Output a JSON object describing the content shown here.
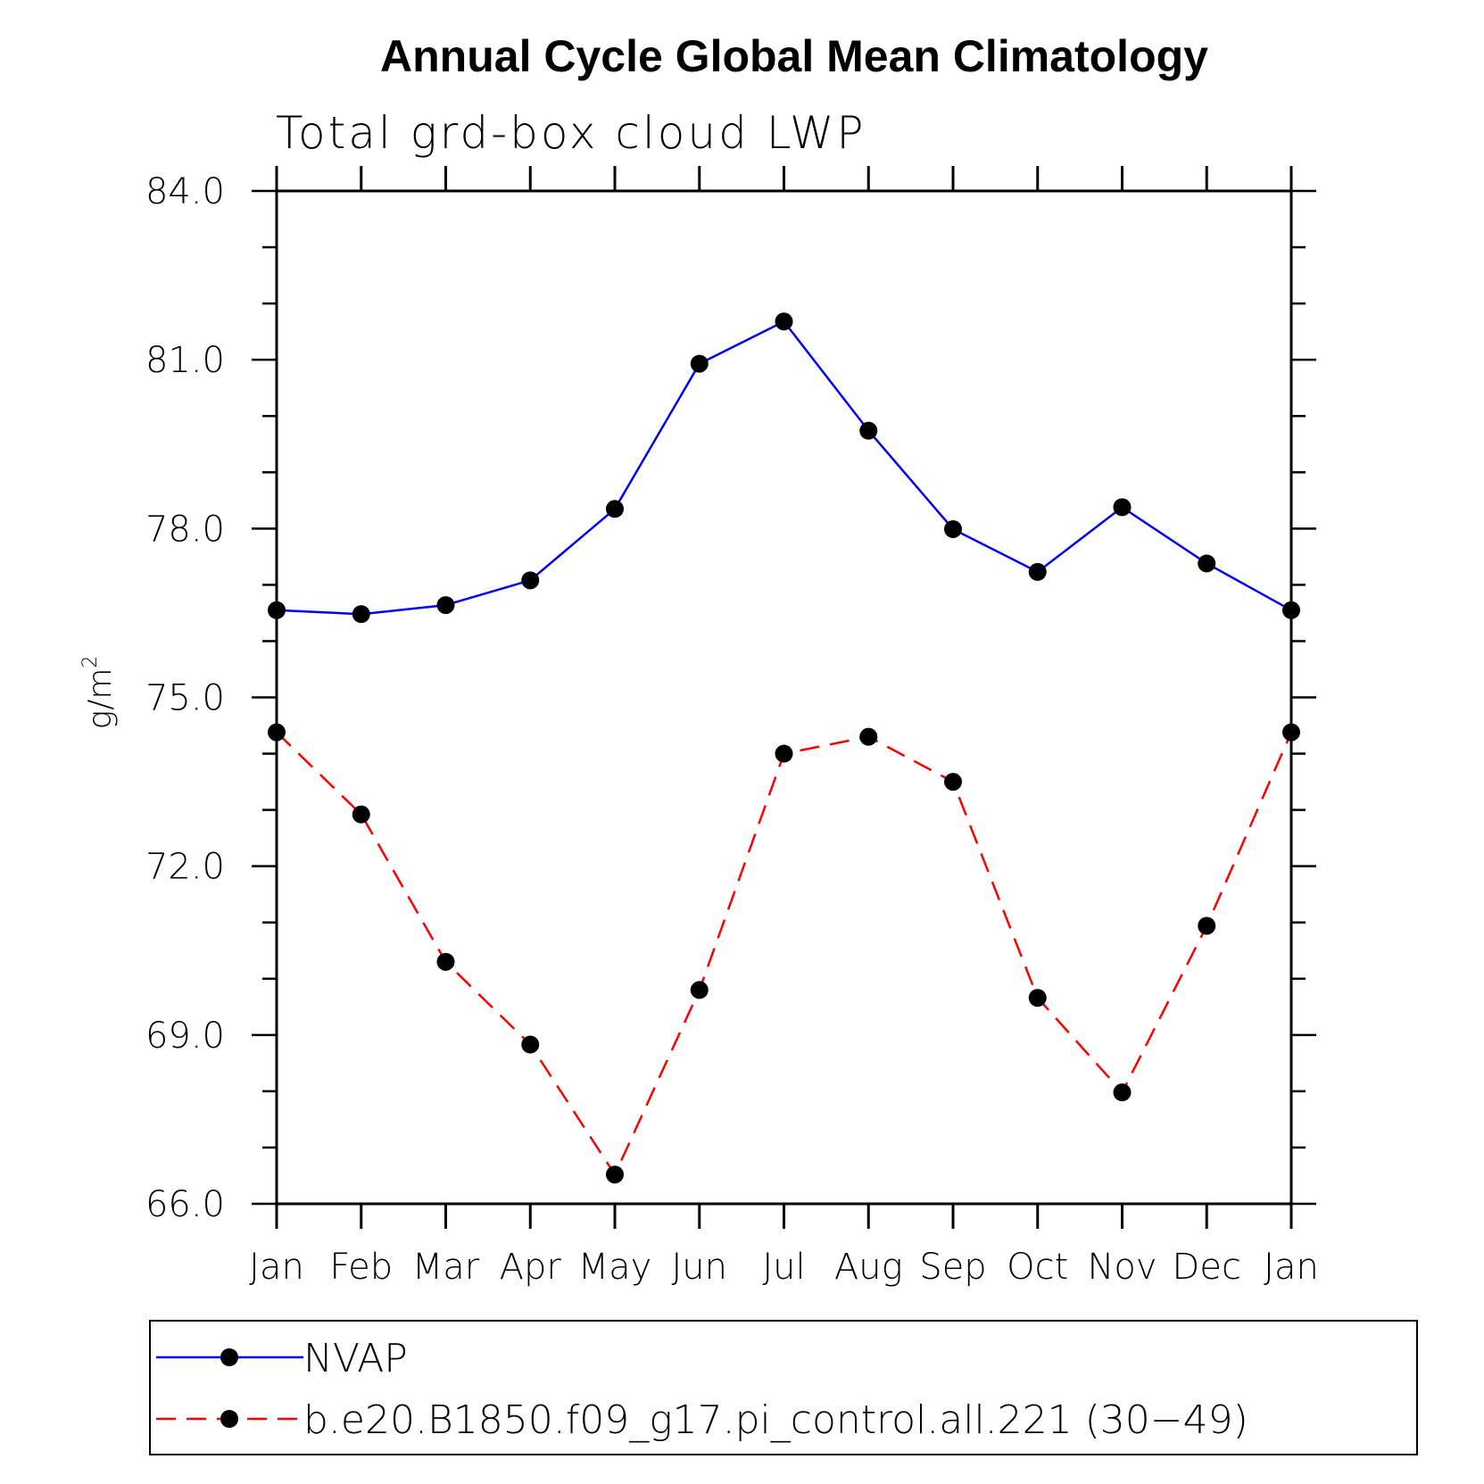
{
  "chart_data": {
    "type": "line",
    "title": "Annual Cycle Global Mean Climatology",
    "subtitle": "Total grd-box cloud LWP",
    "xlabel": "",
    "ylabel_base": "g/m",
    "ylabel_sup": "2",
    "categories": [
      "Jan",
      "Feb",
      "Mar",
      "Apr",
      "May",
      "Jun",
      "Jul",
      "Aug",
      "Sep",
      "Oct",
      "Nov",
      "Dec",
      "Jan"
    ],
    "ylim": [
      66.0,
      84.0
    ],
    "yticks": [
      "66.0",
      "69.0",
      "72.0",
      "75.0",
      "78.0",
      "81.0",
      "84.0"
    ],
    "series": [
      {
        "name": "NVAP",
        "color": "#0000ff",
        "dashed": false,
        "values": [
          76.55,
          76.48,
          76.64,
          77.08,
          78.35,
          80.93,
          81.68,
          79.74,
          77.99,
          77.23,
          78.38,
          77.38,
          76.55
        ]
      },
      {
        "name": "b.e20.B1850.f09_g17.pi_control.all.221 (30−49)",
        "color": "#ff0000",
        "dashed": true,
        "values": [
          74.38,
          72.92,
          70.3,
          68.83,
          66.52,
          69.8,
          74.0,
          74.3,
          73.5,
          69.66,
          67.98,
          70.94,
          74.38
        ]
      }
    ],
    "marker_color": "#000000",
    "grid": false,
    "legend_position": "bottom"
  }
}
